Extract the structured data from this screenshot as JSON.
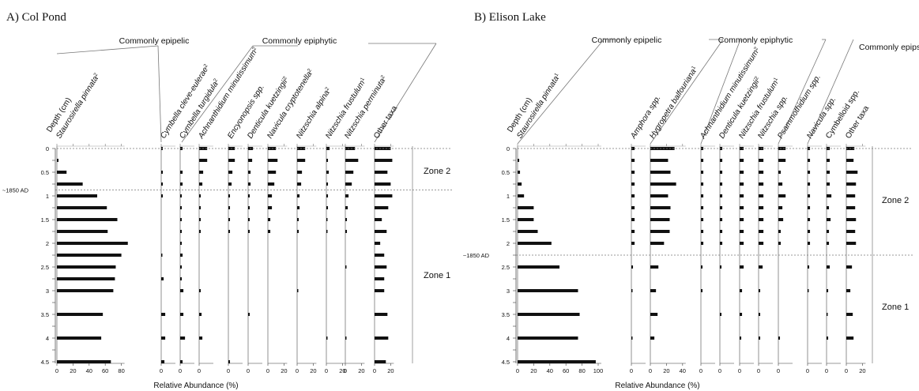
{
  "chart_data": [
    {
      "panel_title": "A) Col Pond",
      "type": "bar",
      "orientation": "horizontal",
      "depth_label": "Depth (cm)",
      "depth_ticks": [
        "0",
        "0.5",
        "~1850 AD",
        "1",
        "1.5",
        "2",
        "2.5",
        "3",
        "3.5",
        "4",
        "4.5"
      ],
      "depths": [
        0,
        0.25,
        0.5,
        0.75,
        1,
        1.25,
        1.5,
        1.75,
        2,
        2.25,
        2.5,
        2.75,
        3,
        3.5,
        4,
        4.5
      ],
      "groups": [
        {
          "label": "Commonly epipelic"
        },
        {
          "label": "Commonly epiphytic"
        }
      ],
      "taxa": [
        {
          "name": "Staurosirella pinnata",
          "sup": "2",
          "italic": true,
          "ticks": [
            "0",
            "20",
            "40",
            "60",
            "80"
          ],
          "values": [
            0,
            2,
            12,
            32,
            50,
            62,
            75,
            63,
            88,
            80,
            73,
            72,
            70,
            57,
            55,
            67
          ]
        },
        {
          "name": "Cymbella cleve-eulerae",
          "sup": "2",
          "italic": true,
          "ticks": [
            "0"
          ],
          "values": [
            2,
            0,
            2,
            2,
            2,
            0,
            0,
            0,
            0,
            1,
            0,
            3,
            0,
            5,
            5,
            4
          ]
        },
        {
          "name": "Cymbella turgidula",
          "sup": "2",
          "italic": true,
          "ticks": [
            "0"
          ],
          "values": [
            3,
            0,
            3,
            3,
            2,
            2,
            2,
            2,
            2,
            3,
            2,
            2,
            4,
            4,
            6,
            3
          ]
        },
        {
          "name": "Achnanthidium minutissimum",
          "sup": "2",
          "italic": true,
          "ticks": [
            "0"
          ],
          "values": [
            10,
            10,
            5,
            4,
            2,
            2,
            2,
            2,
            0,
            0,
            0,
            0,
            2,
            3,
            4,
            0
          ]
        },
        {
          "name": "Encyonopsis spp.",
          "sup": "",
          "italic": true,
          "ticks": [
            "0"
          ],
          "values": [
            8,
            8,
            5,
            4,
            2,
            2,
            2,
            2,
            0,
            0,
            0,
            0,
            0,
            0,
            0,
            2
          ]
        },
        {
          "name": "Denticula kuetzingii",
          "sup": "2",
          "italic": true,
          "ticks": [
            "0"
          ],
          "values": [
            6,
            5,
            3,
            3,
            2,
            2,
            2,
            2,
            0,
            0,
            0,
            0,
            0,
            2,
            0,
            0
          ]
        },
        {
          "name": "Navicula cryptotenella",
          "sup": "2",
          "italic": true,
          "ticks": [
            "0",
            "20"
          ],
          "values": [
            10,
            12,
            10,
            8,
            5,
            5,
            3,
            3,
            0,
            0,
            0,
            0,
            0,
            0,
            0,
            0
          ]
        },
        {
          "name": "Nitzschia alpina",
          "sup": "2",
          "italic": true,
          "ticks": [
            "0",
            "20"
          ],
          "values": [
            10,
            10,
            6,
            5,
            3,
            3,
            2,
            2,
            0,
            0,
            0,
            0,
            1,
            0,
            0,
            0
          ]
        },
        {
          "name": "Nitzschia frustulum",
          "sup": "1",
          "italic": true,
          "ticks": [
            "0",
            "20"
          ],
          "values": [
            4,
            2,
            3,
            2,
            2,
            2,
            1,
            1,
            0,
            0,
            0,
            0,
            0,
            0,
            1,
            0
          ]
        },
        {
          "name": "Nitzschia perminuta",
          "sup": "2",
          "italic": true,
          "ticks": [
            "0",
            "20"
          ],
          "values": [
            12,
            16,
            10,
            8,
            4,
            3,
            2,
            2,
            0,
            0,
            1,
            0,
            0,
            0,
            1,
            0
          ]
        },
        {
          "name": "Other taxa",
          "sup": "",
          "italic": false,
          "ticks": [
            "0",
            "20"
          ],
          "values": [
            20,
            22,
            16,
            20,
            22,
            17,
            9,
            15,
            7,
            12,
            15,
            12,
            12,
            16,
            17,
            14
          ]
        }
      ],
      "zones": [
        "Zone 2",
        "Zone 1"
      ],
      "xlabel": "Relative Abundance (%)"
    },
    {
      "panel_title": "B) Elison Lake",
      "type": "bar",
      "orientation": "horizontal",
      "depth_label": "Depth (cm)",
      "depth_ticks": [
        "0",
        "0.5",
        "1",
        "1.5",
        "2",
        "~1850 AD",
        "2.5",
        "3",
        "3.5",
        "4",
        "4.5"
      ],
      "depths": [
        0,
        0.25,
        0.5,
        0.75,
        1,
        1.25,
        1.5,
        1.75,
        2,
        2.5,
        3,
        3.5,
        4,
        4.5
      ],
      "groups": [
        {
          "label": "Commonly epipelic"
        },
        {
          "label": "Commonly epiphytic"
        },
        {
          "label": "Commonly epipsammic"
        }
      ],
      "taxa": [
        {
          "name": "Staurosirella pinnata",
          "sup": "1",
          "italic": true,
          "ticks": [
            "0",
            "20",
            "40",
            "60",
            "80",
            "100"
          ],
          "values": [
            0,
            2,
            3,
            5,
            8,
            20,
            20,
            25,
            42,
            52,
            75,
            77,
            75,
            97
          ]
        },
        {
          "name": "Amphora spp.",
          "sup": "",
          "italic": true,
          "ticks": [
            "0"
          ],
          "values": [
            4,
            4,
            4,
            4,
            4,
            4,
            4,
            4,
            4,
            2,
            1,
            0,
            1,
            0
          ]
        },
        {
          "name": "Hygropetra balfouriana",
          "sup": "1",
          "italic": true,
          "ticks": [
            "0",
            "20",
            "40"
          ],
          "values": [
            30,
            22,
            25,
            32,
            22,
            25,
            24,
            24,
            17,
            10,
            7,
            9,
            5,
            0
          ]
        },
        {
          "name": "Achnanthidium minutissimum",
          "sup": "2",
          "italic": true,
          "ticks": [
            "0"
          ],
          "values": [
            3,
            3,
            3,
            3,
            3,
            3,
            3,
            3,
            3,
            2,
            2,
            0,
            0,
            0
          ]
        },
        {
          "name": "Denticula kuetzingii",
          "sup": "2",
          "italic": true,
          "ticks": [
            "0"
          ],
          "values": [
            3,
            3,
            3,
            3,
            3,
            3,
            3,
            3,
            3,
            2,
            0,
            2,
            0,
            0
          ]
        },
        {
          "name": "Nitzschia frustulum",
          "sup": "1",
          "italic": true,
          "ticks": [
            "0"
          ],
          "values": [
            5,
            5,
            5,
            5,
            5,
            5,
            5,
            5,
            5,
            5,
            3,
            3,
            2,
            0
          ]
        },
        {
          "name": "Nitzschia spp.",
          "sup": "",
          "italic": true,
          "ticks": [
            "0"
          ],
          "values": [
            6,
            6,
            6,
            6,
            6,
            6,
            6,
            6,
            6,
            5,
            2,
            2,
            2,
            0
          ]
        },
        {
          "name": "Psammothidium spp.",
          "sup": "",
          "italic": true,
          "ticks": [
            "0"
          ],
          "values": [
            9,
            9,
            3,
            5,
            9,
            5,
            6,
            3,
            3,
            0,
            0,
            0,
            2,
            0
          ]
        },
        {
          "name": "Navicula spp.",
          "sup": "",
          "italic": true,
          "ticks": [
            "0"
          ],
          "values": [
            3,
            3,
            3,
            3,
            3,
            3,
            3,
            3,
            3,
            2,
            1,
            0,
            0,
            0
          ]
        },
        {
          "name": "Cymbelloid spp.",
          "sup": "",
          "italic": false,
          "ticks": [
            "0"
          ],
          "values": [
            4,
            4,
            4,
            4,
            6,
            3,
            5,
            3,
            3,
            4,
            2,
            1,
            2,
            0
          ]
        },
        {
          "name": "Other taxa",
          "sup": "",
          "italic": false,
          "ticks": [
            "0",
            "20"
          ],
          "values": [
            10,
            9,
            14,
            12,
            11,
            11,
            12,
            11,
            12,
            7,
            5,
            8,
            9,
            0
          ]
        }
      ],
      "zones": [
        "Zone 2",
        "Zone 1"
      ],
      "xlabel": "Relative Abundance (%)"
    }
  ]
}
